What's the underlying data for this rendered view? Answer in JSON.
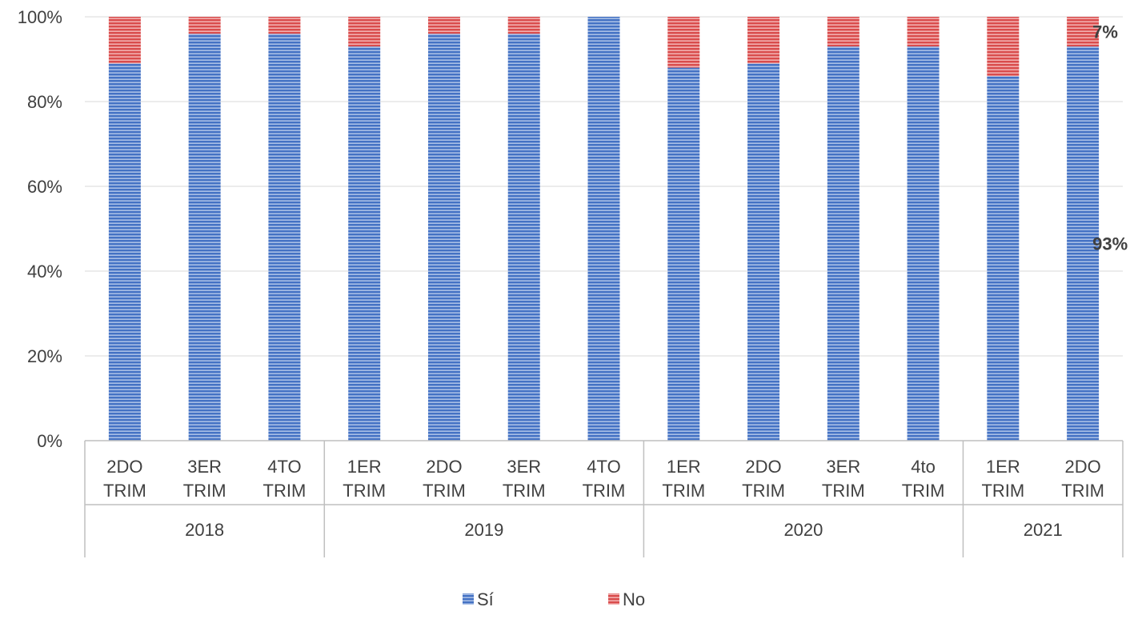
{
  "chart_data": {
    "type": "bar",
    "stacked": true,
    "percent": true,
    "groups": [
      {
        "label": "2018",
        "categories": [
          "2DO TRIM",
          "3ER TRIM",
          "4TO TRIM"
        ]
      },
      {
        "label": "2019",
        "categories": [
          "1ER TRIM",
          "2DO TRIM",
          "3ER TRIM",
          "4TO TRIM"
        ]
      },
      {
        "label": "2020",
        "categories": [
          "1ER TRIM",
          "2DO TRIM",
          "3ER TRIM",
          "4to TRIM"
        ]
      },
      {
        "label": "2021",
        "categories": [
          "1ER TRIM",
          "2DO TRIM"
        ]
      }
    ],
    "categories": [
      "2DO TRIM",
      "3ER TRIM",
      "4TO TRIM",
      "1ER TRIM",
      "2DO TRIM",
      "3ER TRIM",
      "4TO TRIM",
      "1ER TRIM",
      "2DO TRIM",
      "3ER TRIM",
      "4to TRIM",
      "1ER TRIM",
      "2DO TRIM"
    ],
    "series": [
      {
        "name": "Sí",
        "color": "#4472C4",
        "values": [
          89,
          96,
          96,
          93,
          96,
          96,
          100,
          88,
          89,
          93,
          93,
          86,
          93
        ]
      },
      {
        "name": "No",
        "color": "#E05A5A",
        "values": [
          11,
          4,
          4,
          7,
          4,
          4,
          0,
          12,
          11,
          7,
          7,
          14,
          7
        ]
      }
    ],
    "yticks": [
      "0%",
      "20%",
      "40%",
      "60%",
      "80%",
      "100%"
    ],
    "ylim": [
      0,
      100
    ],
    "data_labels": [
      {
        "category_index": 12,
        "series": "Sí",
        "text": "93%"
      },
      {
        "category_index": 12,
        "series": "No",
        "text": "7%"
      }
    ],
    "legend_position": "bottom",
    "gridlines": true
  }
}
